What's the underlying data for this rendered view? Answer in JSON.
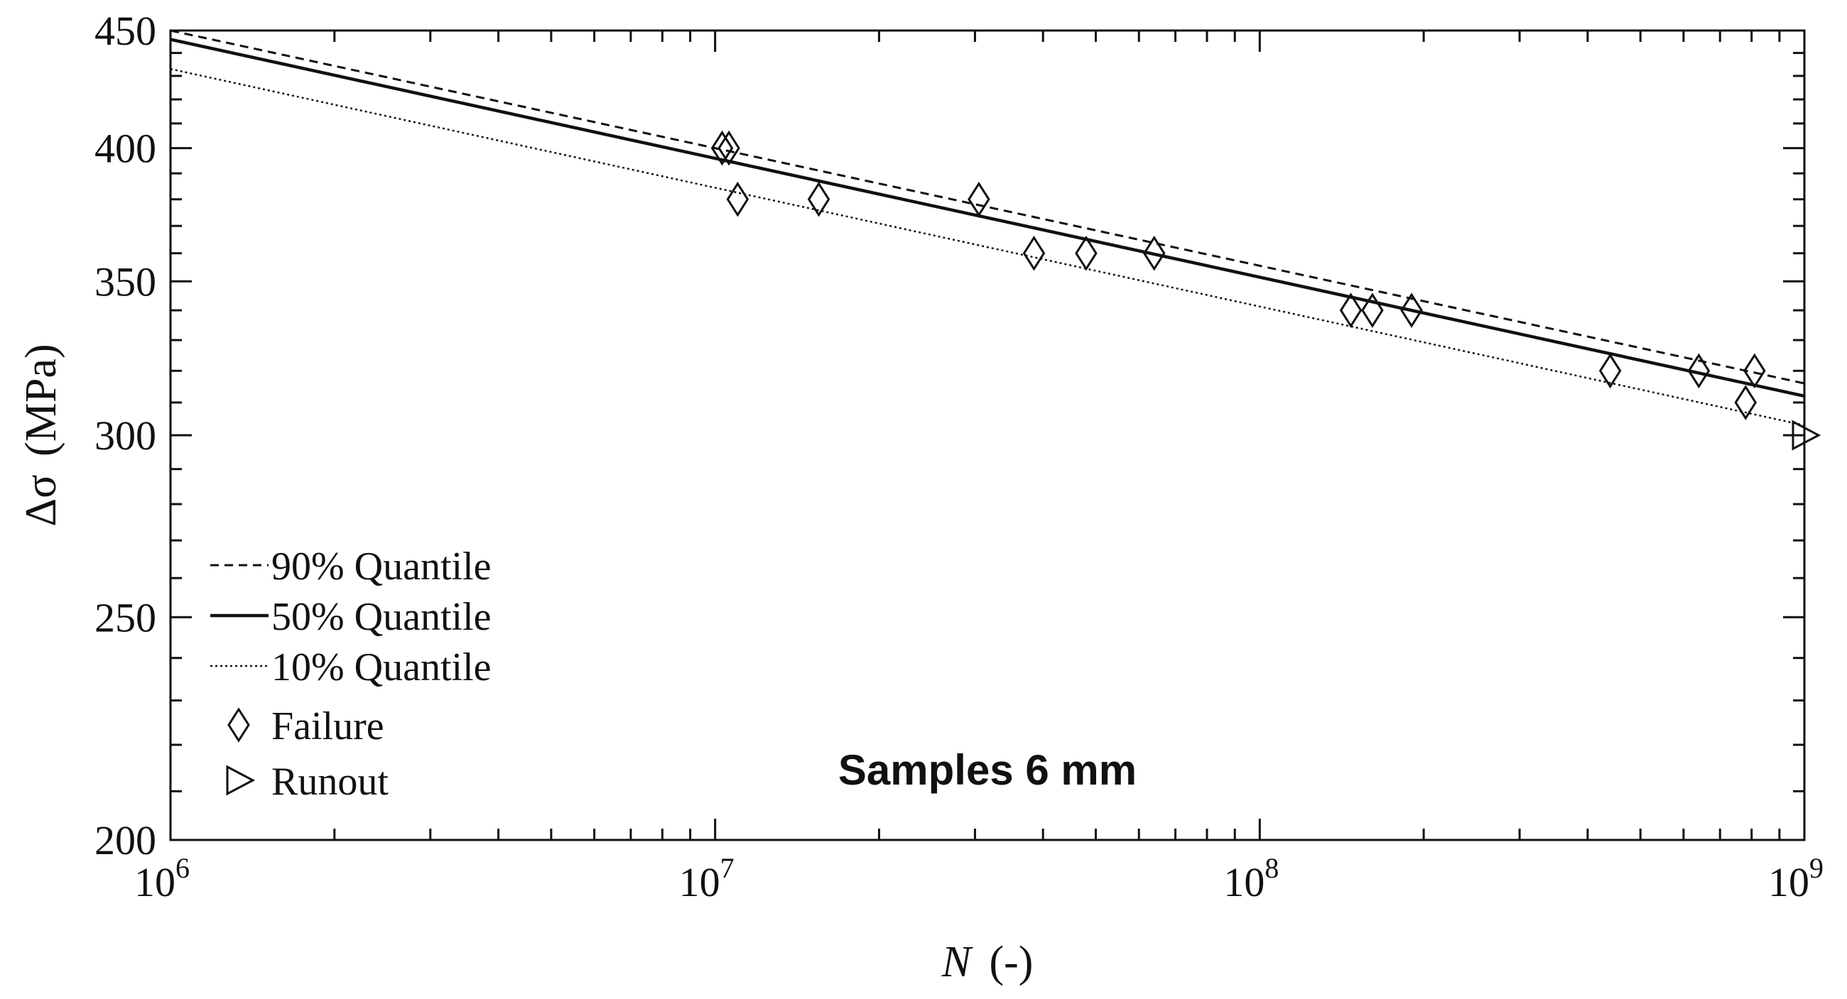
{
  "chart_data": {
    "type": "scatter",
    "title": "",
    "annotation": "Samples 6 mm",
    "x_scale": "log",
    "y_scale": "log",
    "xlim": [
      1000000,
      1000000000
    ],
    "ylim": [
      200,
      450
    ],
    "xlabel_symbol": "N",
    "xlabel_unit": "(-)",
    "ylabel_symbol": "Δσ",
    "ylabel_unit": "(MPa)",
    "x_ticks": [
      {
        "value": 1000000,
        "base": "10",
        "exp": "6"
      },
      {
        "value": 10000000,
        "base": "10",
        "exp": "7"
      },
      {
        "value": 100000000,
        "base": "10",
        "exp": "8"
      },
      {
        "value": 1000000000,
        "base": "10",
        "exp": "9"
      }
    ],
    "y_ticks": [
      {
        "value": 200,
        "label": "200"
      },
      {
        "value": 250,
        "label": "250"
      },
      {
        "value": 300,
        "label": "300"
      },
      {
        "value": 350,
        "label": "350"
      },
      {
        "value": 400,
        "label": "400"
      },
      {
        "value": 450,
        "label": "450"
      }
    ],
    "y_minor_ticks": [
      210,
      220,
      230,
      240,
      260,
      270,
      280,
      290,
      310,
      320,
      330,
      340,
      360,
      370,
      380,
      390,
      410,
      420,
      430,
      440
    ],
    "lines": [
      {
        "name": "90% Quantile",
        "style": "dashed",
        "x": [
          1000000,
          1000000000
        ],
        "y": [
          450,
          316
        ]
      },
      {
        "name": "50% Quantile",
        "style": "solid",
        "x": [
          1000000,
          1000000000
        ],
        "y": [
          446,
          312
        ]
      },
      {
        "name": "10% Quantile",
        "style": "dotted",
        "x": [
          1000000,
          1000000000
        ],
        "y": [
          433,
          303
        ]
      }
    ],
    "series": [
      {
        "name": "Failure",
        "marker": "diamond",
        "points": [
          {
            "x": 10300000,
            "y": 400
          },
          {
            "x": 10600000,
            "y": 400
          },
          {
            "x": 11000000,
            "y": 380
          },
          {
            "x": 15500000,
            "y": 380
          },
          {
            "x": 30500000,
            "y": 380
          },
          {
            "x": 38500000,
            "y": 360
          },
          {
            "x": 48000000,
            "y": 360
          },
          {
            "x": 64000000,
            "y": 360
          },
          {
            "x": 147000000,
            "y": 340
          },
          {
            "x": 161000000,
            "y": 340
          },
          {
            "x": 190000000,
            "y": 340
          },
          {
            "x": 440000000,
            "y": 320
          },
          {
            "x": 640000000,
            "y": 320
          },
          {
            "x": 780000000,
            "y": 310
          },
          {
            "x": 810000000,
            "y": 320
          }
        ]
      },
      {
        "name": "Runout",
        "marker": "triangle-right",
        "points": [
          {
            "x": 1000000000,
            "y": 300
          }
        ]
      }
    ],
    "legend": [
      {
        "label": "90% Quantile",
        "kind": "line",
        "style": "dashed"
      },
      {
        "label": "50% Quantile",
        "kind": "line",
        "style": "solid"
      },
      {
        "label": "10% Quantile",
        "kind": "line",
        "style": "dotted"
      },
      {
        "label": "Failure",
        "kind": "marker",
        "marker": "diamond"
      },
      {
        "label": "Runout",
        "kind": "marker",
        "marker": "triangle-right"
      }
    ],
    "legend_position": "bottom-left",
    "grid": false,
    "colors": {
      "ink": "#111111",
      "background": "#ffffff"
    }
  }
}
